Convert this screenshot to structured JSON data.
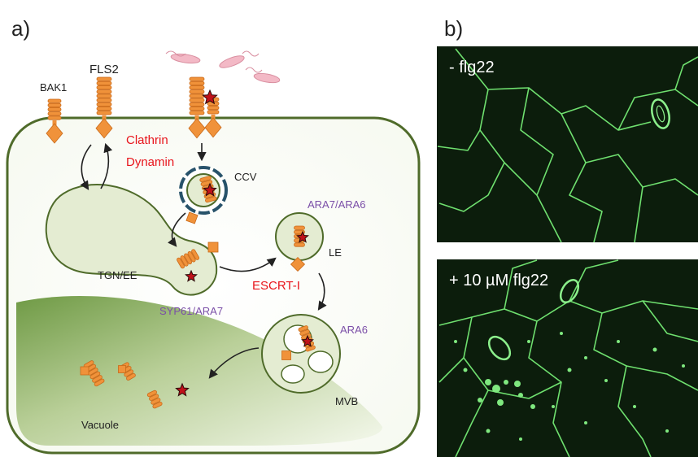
{
  "panels": {
    "a": {
      "letter": "a)",
      "labels": {
        "bak1": "BAK1",
        "fls2": "FLS2",
        "clathrin": "Clathrin",
        "dynamin": "Dynamin",
        "ccv": "CCV",
        "tgn_ee": "TGN/EE",
        "syp61_ara7": "SYP61/ARA7",
        "ara7_ara6": "ARA7/ARA6",
        "le": "LE",
        "escrt": "ESCRT-I",
        "ara6": "ARA6",
        "mvb": "MVB",
        "vacuole": "Vacuole"
      }
    },
    "b": {
      "letter": "b)",
      "images": [
        {
          "label": "- flg22"
        },
        {
          "label": "+ 10 µM flg22"
        }
      ]
    }
  },
  "colors": {
    "receptor_orange": "#f0923a",
    "receptor_stroke": "#c96a1a",
    "cell_stroke": "#4f6b2a",
    "compartment_fill": "#e4ecd2",
    "vacuole_green": "#6f9a45",
    "clathrin_red": "#e8141b",
    "marker_purple": "#7b4fa8",
    "micro_background": "#0c1d0c",
    "micro_membrane": "#6fe06f",
    "flagellin_pink": "#f3b9c6"
  }
}
